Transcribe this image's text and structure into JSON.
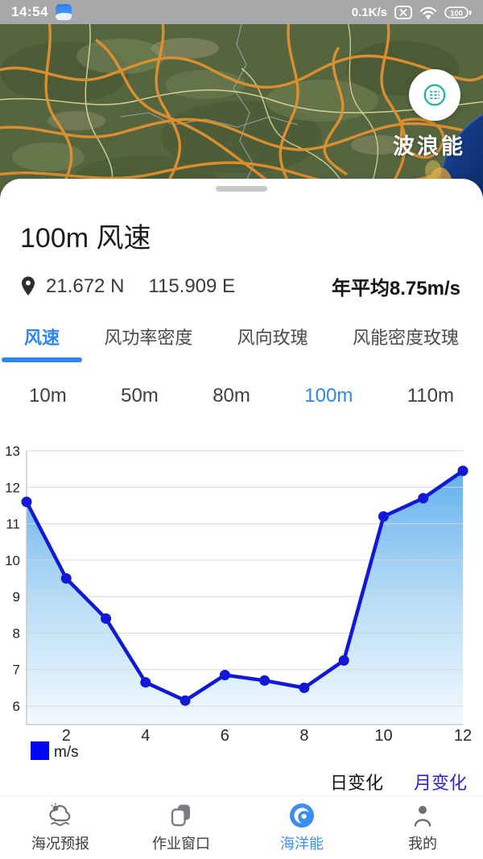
{
  "status_bar": {
    "time": "14:54",
    "net_speed": "0.1K/s",
    "battery": "100"
  },
  "map": {
    "overlay_label": "波浪能"
  },
  "panel": {
    "title": "100m 风速",
    "latitude": "21.672 N",
    "longitude": "115.909 E",
    "annual_average": "年平均8.75m/s",
    "tabs": [
      {
        "label": "风速",
        "active": true
      },
      {
        "label": "风功率密度",
        "active": false
      },
      {
        "label": "风向玫瑰",
        "active": false
      },
      {
        "label": "风能密度玫瑰",
        "active": false
      }
    ],
    "heights": [
      {
        "label": "10m",
        "active": false
      },
      {
        "label": "50m",
        "active": false
      },
      {
        "label": "80m",
        "active": false
      },
      {
        "label": "100m",
        "active": true
      },
      {
        "label": "110m",
        "active": false
      }
    ],
    "toggle": {
      "daily": "日变化",
      "monthly": "月变化",
      "selected": "monthly"
    }
  },
  "chart_data": {
    "type": "area",
    "x": [
      1,
      2,
      3,
      4,
      5,
      6,
      7,
      8,
      9,
      10,
      11,
      12
    ],
    "values": [
      11.6,
      9.5,
      8.4,
      6.65,
      6.15,
      6.85,
      6.7,
      6.5,
      7.25,
      11.2,
      11.7,
      12.45
    ],
    "yticks": [
      6,
      7,
      8,
      9,
      10,
      11,
      12,
      13
    ],
    "xticks": [
      2,
      4,
      6,
      8,
      10,
      12
    ],
    "ylim": [
      6,
      13
    ],
    "unit_label": "m/s",
    "grid": true,
    "legend_position": "bottom-left",
    "line_color": "#1118d6",
    "legend_color": "#0007ef",
    "fill_top": "#55aaea",
    "fill_bottom": "#f2fafe"
  },
  "nav": {
    "items": [
      {
        "label": "海况预报",
        "active": false
      },
      {
        "label": "作业窗口",
        "active": false
      },
      {
        "label": "海洋能",
        "active": true
      },
      {
        "label": "我的",
        "active": false
      }
    ]
  },
  "colors": {
    "accent_blue": "#3086f0",
    "deep_blue": "#2723d6",
    "teal": "#27b3a2",
    "statusbar_gray": "#a7a8aa"
  }
}
